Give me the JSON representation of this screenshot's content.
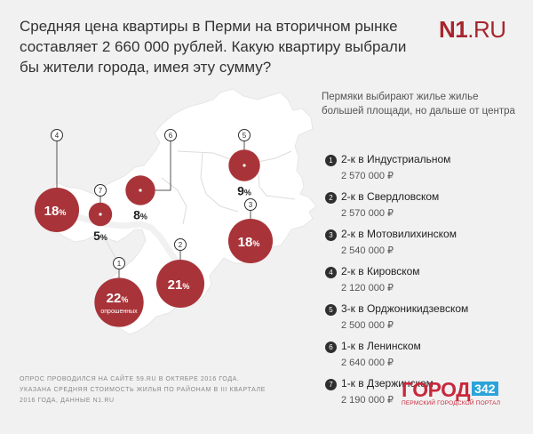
{
  "headline": {
    "line1": "Средняя цена квартиры в Перми на вторичном рынке",
    "line2": "составляет 2 660 000 рублей. Какую квартиру выбрали",
    "line3": "бы жители города, имея эту сумму?"
  },
  "logo": {
    "bold": "N1",
    "rest": ".RU"
  },
  "subtitle": {
    "line1": "Пермяки выбирают жилье жилье",
    "line2": "большей площади, но дальше от центра"
  },
  "map": {
    "districts": [
      {
        "marker": "1",
        "percent": "22",
        "unit": "%",
        "sublabel": "опрошенных",
        "value": 22
      },
      {
        "marker": "2",
        "percent": "21",
        "unit": "%",
        "value": 21
      },
      {
        "marker": "3",
        "percent": "18",
        "unit": "%",
        "value": 18
      },
      {
        "marker": "4",
        "percent": "18",
        "unit": "%",
        "value": 18
      },
      {
        "marker": "5",
        "percent": "9",
        "unit": "%",
        "value": 9
      },
      {
        "marker": "6",
        "percent": "8",
        "unit": "%",
        "value": 8
      },
      {
        "marker": "7",
        "percent": "5",
        "unit": "%",
        "value": 5
      }
    ],
    "colors": {
      "bubble": "#a83439",
      "map_fill": "#ffffff",
      "marker": "#2f2f2f",
      "background": "#f1f1f1"
    }
  },
  "legend": [
    {
      "num": "1",
      "label": "2-к в Индустриальном",
      "price": "2 570 000 ₽"
    },
    {
      "num": "2",
      "label": "2-к в Свердловском",
      "price": "2 570 000 ₽"
    },
    {
      "num": "3",
      "label": "2-к в Мотовилихинском",
      "price": "2 540 000 ₽"
    },
    {
      "num": "4",
      "label": "2-к в Кировском",
      "price": "2 120 000 ₽"
    },
    {
      "num": "5",
      "label": "3-к в Орджоникидзевском",
      "price": "2 500 000 ₽"
    },
    {
      "num": "6",
      "label": "1-к в Ленинском",
      "price": "2 640 000 ₽"
    },
    {
      "num": "7",
      "label": "1-к в Дзержинском",
      "price": "2 190 000 ₽"
    }
  ],
  "footnote": {
    "line1": "ОПРОС ПРОВОДИЛСЯ НА САЙТЕ 59.RU В ОКТЯБРЕ 2016 ГОДА.",
    "line2": "УКАЗАНА СРЕДНЯЯ СТОИМОСТЬ ЖИЛЬЯ ПО РАЙОНАМ В III КВАРТАЛЕ",
    "line3": "2016 ГОДА, ДАННЫЕ N1.RU"
  },
  "watermark": {
    "word": "ГОРОД",
    "number": "342",
    "tagline": "ПЕРМСКИЙ ГОРОДСКОЙ ПОРТАЛ"
  }
}
